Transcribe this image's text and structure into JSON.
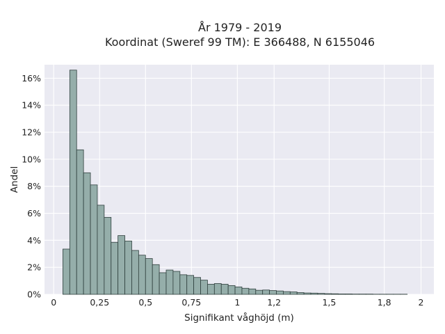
{
  "chart_data": {
    "type": "bar",
    "title_line1": "År 1979 - 2019",
    "title_line2": "Koordinat (Sweref 99 TM): E 366488, N 6155046",
    "xlabel": "Signifikant våghöjd (m)",
    "ylabel": "Andel",
    "xlim": [
      -0.05,
      2.07
    ],
    "ylim": [
      0,
      0.17
    ],
    "grid": true,
    "bin_width": 0.0375,
    "x_ticks": [
      0,
      0.25,
      0.5,
      0.75,
      1,
      1.2,
      1.5,
      1.8,
      2
    ],
    "x_tick_labels": [
      "0",
      "0,25",
      "0,5",
      "0,75",
      "1",
      "1,2",
      "1,5",
      "1,8",
      "2"
    ],
    "y_ticks": [
      0,
      0.02,
      0.04,
      0.06,
      0.08,
      0.1,
      0.12,
      0.14,
      0.16
    ],
    "y_tick_labels": [
      "0%",
      "2%",
      "4%",
      "6%",
      "8%",
      "10%",
      "12%",
      "14%",
      "16%"
    ],
    "bin_starts": [
      0.05,
      0.0875,
      0.125,
      0.1625,
      0.2,
      0.2375,
      0.275,
      0.3125,
      0.35,
      0.3875,
      0.425,
      0.4625,
      0.5,
      0.5375,
      0.575,
      0.6125,
      0.65,
      0.6875,
      0.725,
      0.7625,
      0.8,
      0.8375,
      0.875,
      0.9125,
      0.95,
      0.9875,
      1.025,
      1.0625,
      1.1,
      1.1375,
      1.175,
      1.2125,
      1.25,
      1.2875,
      1.325,
      1.3625,
      1.4,
      1.4375,
      1.475,
      1.5125,
      1.55,
      1.5875,
      1.625,
      1.6625,
      1.7,
      1.7375,
      1.775,
      1.8125,
      1.85,
      1.8875
    ],
    "values": [
      0.0335,
      0.166,
      0.107,
      0.09,
      0.081,
      0.066,
      0.057,
      0.0385,
      0.0435,
      0.0395,
      0.0325,
      0.029,
      0.0265,
      0.022,
      0.016,
      0.018,
      0.017,
      0.0145,
      0.014,
      0.0125,
      0.0105,
      0.0075,
      0.008,
      0.0075,
      0.0065,
      0.0055,
      0.0045,
      0.004,
      0.003,
      0.0032,
      0.0028,
      0.0025,
      0.002,
      0.0018,
      0.0013,
      0.001,
      0.0009,
      0.0007,
      0.0005,
      0.0004,
      0.0003,
      0.0003,
      0.0002,
      0.0002,
      0.0002,
      0.0001,
      0.0001,
      0.0001,
      0.0001,
      0.0001
    ],
    "colors": {
      "bar_fill": "#95aeaa",
      "bar_stroke": "#2f3f3d",
      "plot_bg": "#eaeaf2",
      "grid": "#ffffff"
    }
  }
}
